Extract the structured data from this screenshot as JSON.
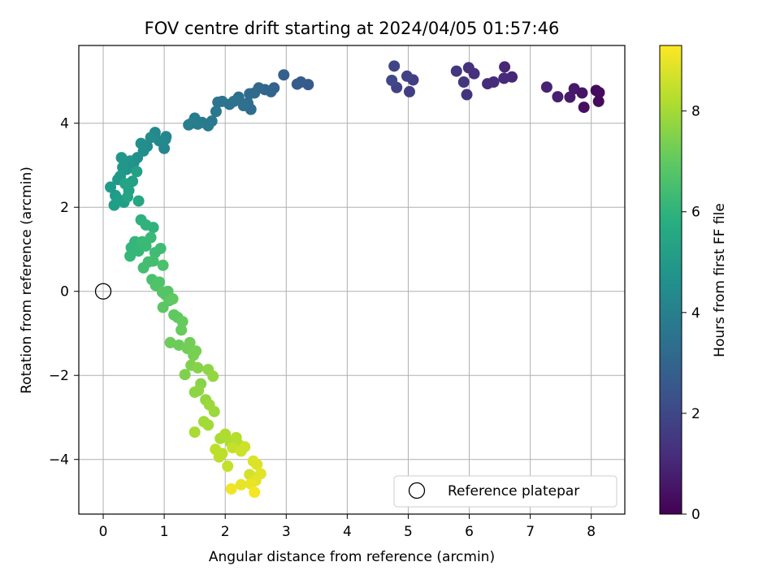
{
  "chart_data": {
    "type": "scatter",
    "title": "FOV centre drift starting at 2024/04/05 01:57:46",
    "xlabel": "Angular distance from reference (arcmin)",
    "ylabel": "Rotation from reference (arcmin)",
    "xlim": [
      -0.4,
      8.55
    ],
    "ylim": [
      -5.3,
      5.85
    ],
    "xticks": [
      0,
      1,
      2,
      3,
      4,
      5,
      6,
      7,
      8
    ],
    "yticks": [
      -4,
      -2,
      0,
      2,
      4
    ],
    "grid": true,
    "colorbar": {
      "label": "Hours from first FF file",
      "range": [
        0,
        9.3
      ],
      "ticks": [
        0,
        2,
        4,
        6,
        8
      ],
      "colormap": "viridis"
    },
    "legend": {
      "placement": "lower-right",
      "entries": [
        "Reference platepar"
      ]
    },
    "reference_point": {
      "x": 0,
      "y": 0,
      "label": "Reference platepar"
    },
    "points": [
      {
        "x": 8.08,
        "y": 4.78,
        "c": 0.2
      },
      {
        "x": 8.12,
        "y": 4.52,
        "c": 0.2
      },
      {
        "x": 8.13,
        "y": 4.73,
        "c": 0.3
      },
      {
        "x": 7.88,
        "y": 4.38,
        "c": 0.4
      },
      {
        "x": 7.85,
        "y": 4.72,
        "c": 0.5
      },
      {
        "x": 7.72,
        "y": 4.82,
        "c": 0.6
      },
      {
        "x": 7.65,
        "y": 4.62,
        "c": 0.7
      },
      {
        "x": 7.45,
        "y": 4.63,
        "c": 0.8
      },
      {
        "x": 7.27,
        "y": 4.86,
        "c": 0.9
      },
      {
        "x": 6.7,
        "y": 5.1,
        "c": 1.0
      },
      {
        "x": 6.58,
        "y": 5.34,
        "c": 1.0
      },
      {
        "x": 6.57,
        "y": 5.07,
        "c": 1.1
      },
      {
        "x": 6.4,
        "y": 4.98,
        "c": 1.2
      },
      {
        "x": 6.3,
        "y": 4.94,
        "c": 1.2
      },
      {
        "x": 6.08,
        "y": 5.18,
        "c": 1.3
      },
      {
        "x": 5.99,
        "y": 5.32,
        "c": 1.3
      },
      {
        "x": 5.96,
        "y": 4.68,
        "c": 1.4
      },
      {
        "x": 5.91,
        "y": 4.98,
        "c": 1.5
      },
      {
        "x": 5.79,
        "y": 5.24,
        "c": 1.5
      },
      {
        "x": 5.08,
        "y": 5.03,
        "c": 1.7
      },
      {
        "x": 5.02,
        "y": 4.75,
        "c": 1.7
      },
      {
        "x": 4.98,
        "y": 5.12,
        "c": 1.8
      },
      {
        "x": 4.81,
        "y": 4.85,
        "c": 1.8
      },
      {
        "x": 4.77,
        "y": 5.36,
        "c": 1.9
      },
      {
        "x": 4.73,
        "y": 5.02,
        "c": 2.0
      },
      {
        "x": 3.36,
        "y": 4.92,
        "c": 2.6
      },
      {
        "x": 3.24,
        "y": 4.98,
        "c": 2.7
      },
      {
        "x": 3.18,
        "y": 4.93,
        "c": 2.7
      },
      {
        "x": 2.96,
        "y": 5.15,
        "c": 2.8
      },
      {
        "x": 2.8,
        "y": 4.84,
        "c": 2.9
      },
      {
        "x": 2.75,
        "y": 4.75,
        "c": 3.0
      },
      {
        "x": 2.65,
        "y": 4.8,
        "c": 3.0
      },
      {
        "x": 2.55,
        "y": 4.84,
        "c": 3.1
      },
      {
        "x": 2.48,
        "y": 4.72,
        "c": 3.2
      },
      {
        "x": 2.4,
        "y": 4.7,
        "c": 3.2
      },
      {
        "x": 2.42,
        "y": 4.33,
        "c": 3.3
      },
      {
        "x": 2.37,
        "y": 4.48,
        "c": 3.3
      },
      {
        "x": 2.3,
        "y": 4.42,
        "c": 3.4
      },
      {
        "x": 2.22,
        "y": 4.62,
        "c": 3.4
      },
      {
        "x": 2.14,
        "y": 4.52,
        "c": 3.5
      },
      {
        "x": 2.07,
        "y": 4.45,
        "c": 3.5
      },
      {
        "x": 1.95,
        "y": 4.52,
        "c": 3.6
      },
      {
        "x": 1.88,
        "y": 4.5,
        "c": 3.6
      },
      {
        "x": 1.85,
        "y": 4.28,
        "c": 3.7
      },
      {
        "x": 1.78,
        "y": 4.05,
        "c": 3.7
      },
      {
        "x": 1.72,
        "y": 3.94,
        "c": 3.8
      },
      {
        "x": 1.62,
        "y": 4.02,
        "c": 3.8
      },
      {
        "x": 1.55,
        "y": 3.98,
        "c": 3.9
      },
      {
        "x": 1.5,
        "y": 4.12,
        "c": 3.9
      },
      {
        "x": 1.45,
        "y": 4.0,
        "c": 4.0
      },
      {
        "x": 1.4,
        "y": 3.96,
        "c": 4.0
      },
      {
        "x": 1.02,
        "y": 3.62,
        "c": 4.2
      },
      {
        "x": 1.0,
        "y": 3.4,
        "c": 4.3
      },
      {
        "x": 1.03,
        "y": 3.68,
        "c": 4.3
      },
      {
        "x": 0.92,
        "y": 3.58,
        "c": 4.4
      },
      {
        "x": 0.85,
        "y": 3.78,
        "c": 4.4
      },
      {
        "x": 0.78,
        "y": 3.66,
        "c": 4.5
      },
      {
        "x": 0.72,
        "y": 3.45,
        "c": 4.5
      },
      {
        "x": 0.66,
        "y": 3.34,
        "c": 4.6
      },
      {
        "x": 0.62,
        "y": 3.52,
        "c": 4.6
      },
      {
        "x": 0.56,
        "y": 3.18,
        "c": 4.7
      },
      {
        "x": 0.5,
        "y": 3.06,
        "c": 4.7
      },
      {
        "x": 0.44,
        "y": 3.1,
        "c": 4.8
      },
      {
        "x": 0.38,
        "y": 2.9,
        "c": 4.8
      },
      {
        "x": 0.3,
        "y": 3.18,
        "c": 4.9
      },
      {
        "x": 0.32,
        "y": 2.95,
        "c": 4.9
      },
      {
        "x": 0.28,
        "y": 2.74,
        "c": 5.0
      },
      {
        "x": 0.24,
        "y": 2.66,
        "c": 5.0
      },
      {
        "x": 0.12,
        "y": 2.48,
        "c": 5.1
      },
      {
        "x": 0.2,
        "y": 2.28,
        "c": 5.1
      },
      {
        "x": 0.25,
        "y": 2.18,
        "c": 5.2
      },
      {
        "x": 0.18,
        "y": 2.05,
        "c": 5.2
      },
      {
        "x": 0.34,
        "y": 2.12,
        "c": 5.2
      },
      {
        "x": 0.42,
        "y": 2.4,
        "c": 5.3
      },
      {
        "x": 0.48,
        "y": 2.62,
        "c": 5.3
      },
      {
        "x": 0.55,
        "y": 2.85,
        "c": 5.3
      },
      {
        "x": 0.4,
        "y": 2.25,
        "c": 5.4
      },
      {
        "x": 0.36,
        "y": 2.56,
        "c": 5.4
      },
      {
        "x": 0.58,
        "y": 2.15,
        "c": 5.5
      },
      {
        "x": 0.62,
        "y": 1.7,
        "c": 5.9
      },
      {
        "x": 0.7,
        "y": 1.58,
        "c": 6.0
      },
      {
        "x": 0.82,
        "y": 1.52,
        "c": 6.0
      },
      {
        "x": 0.52,
        "y": 1.18,
        "c": 6.1
      },
      {
        "x": 0.46,
        "y": 1.04,
        "c": 6.1
      },
      {
        "x": 0.44,
        "y": 0.84,
        "c": 6.2
      },
      {
        "x": 0.58,
        "y": 0.96,
        "c": 6.2
      },
      {
        "x": 0.64,
        "y": 1.18,
        "c": 6.3
      },
      {
        "x": 0.7,
        "y": 1.08,
        "c": 6.3
      },
      {
        "x": 0.78,
        "y": 1.28,
        "c": 6.3
      },
      {
        "x": 0.85,
        "y": 0.92,
        "c": 6.4
      },
      {
        "x": 0.94,
        "y": 1.02,
        "c": 6.4
      },
      {
        "x": 0.66,
        "y": 0.56,
        "c": 6.5
      },
      {
        "x": 0.74,
        "y": 0.7,
        "c": 6.5
      },
      {
        "x": 0.82,
        "y": 0.72,
        "c": 6.5
      },
      {
        "x": 0.98,
        "y": 0.62,
        "c": 6.6
      },
      {
        "x": 0.8,
        "y": 0.28,
        "c": 6.6
      },
      {
        "x": 0.86,
        "y": 0.14,
        "c": 6.7
      },
      {
        "x": 0.92,
        "y": 0.22,
        "c": 6.7
      },
      {
        "x": 0.97,
        "y": -0.02,
        "c": 6.8
      },
      {
        "x": 1.02,
        "y": -0.08,
        "c": 6.8
      },
      {
        "x": 1.06,
        "y": 0.0,
        "c": 6.8
      },
      {
        "x": 0.98,
        "y": -0.38,
        "c": 6.9
      },
      {
        "x": 1.08,
        "y": -0.22,
        "c": 6.9
      },
      {
        "x": 1.14,
        "y": -0.18,
        "c": 7.0
      },
      {
        "x": 1.16,
        "y": -0.56,
        "c": 7.0
      },
      {
        "x": 1.22,
        "y": -0.62,
        "c": 7.0
      },
      {
        "x": 1.3,
        "y": -0.72,
        "c": 7.1
      },
      {
        "x": 1.28,
        "y": -0.92,
        "c": 7.1
      },
      {
        "x": 1.1,
        "y": -1.22,
        "c": 7.2
      },
      {
        "x": 1.24,
        "y": -1.28,
        "c": 7.2
      },
      {
        "x": 1.38,
        "y": -1.36,
        "c": 7.3
      },
      {
        "x": 1.42,
        "y": -1.22,
        "c": 7.3
      },
      {
        "x": 1.48,
        "y": -1.52,
        "c": 7.4
      },
      {
        "x": 1.52,
        "y": -1.42,
        "c": 7.4
      },
      {
        "x": 1.34,
        "y": -1.98,
        "c": 7.5
      },
      {
        "x": 1.44,
        "y": -1.76,
        "c": 7.5
      },
      {
        "x": 1.55,
        "y": -1.82,
        "c": 7.6
      },
      {
        "x": 1.6,
        "y": -2.2,
        "c": 7.6
      },
      {
        "x": 1.5,
        "y": -2.4,
        "c": 7.7
      },
      {
        "x": 1.56,
        "y": -2.36,
        "c": 7.7
      },
      {
        "x": 1.72,
        "y": -1.86,
        "c": 7.7
      },
      {
        "x": 1.8,
        "y": -2.02,
        "c": 7.8
      },
      {
        "x": 1.68,
        "y": -2.58,
        "c": 7.8
      },
      {
        "x": 1.74,
        "y": -2.7,
        "c": 7.9
      },
      {
        "x": 1.82,
        "y": -2.86,
        "c": 7.9
      },
      {
        "x": 1.65,
        "y": -3.1,
        "c": 8.0
      },
      {
        "x": 1.72,
        "y": -3.18,
        "c": 8.0
      },
      {
        "x": 1.5,
        "y": -3.35,
        "c": 8.1
      },
      {
        "x": 1.92,
        "y": -3.5,
        "c": 8.1
      },
      {
        "x": 2.0,
        "y": -3.4,
        "c": 8.2
      },
      {
        "x": 2.08,
        "y": -3.58,
        "c": 8.2
      },
      {
        "x": 2.18,
        "y": -3.48,
        "c": 8.3
      },
      {
        "x": 2.22,
        "y": -3.65,
        "c": 8.3
      },
      {
        "x": 1.84,
        "y": -3.76,
        "c": 8.4
      },
      {
        "x": 1.9,
        "y": -3.94,
        "c": 8.4
      },
      {
        "x": 1.95,
        "y": -3.86,
        "c": 8.4
      },
      {
        "x": 2.04,
        "y": -4.16,
        "c": 8.5
      },
      {
        "x": 2.12,
        "y": -3.72,
        "c": 8.5
      },
      {
        "x": 2.26,
        "y": -3.8,
        "c": 8.6
      },
      {
        "x": 2.32,
        "y": -3.7,
        "c": 8.6
      },
      {
        "x": 2.4,
        "y": -4.36,
        "c": 8.7
      },
      {
        "x": 2.46,
        "y": -4.04,
        "c": 8.8
      },
      {
        "x": 2.52,
        "y": -4.12,
        "c": 8.8
      },
      {
        "x": 2.58,
        "y": -4.34,
        "c": 8.9
      },
      {
        "x": 2.5,
        "y": -4.5,
        "c": 8.9
      },
      {
        "x": 2.42,
        "y": -4.58,
        "c": 9.0
      },
      {
        "x": 2.26,
        "y": -4.6,
        "c": 9.0
      },
      {
        "x": 2.1,
        "y": -4.7,
        "c": 9.1
      },
      {
        "x": 2.48,
        "y": -4.78,
        "c": 9.2
      }
    ]
  }
}
